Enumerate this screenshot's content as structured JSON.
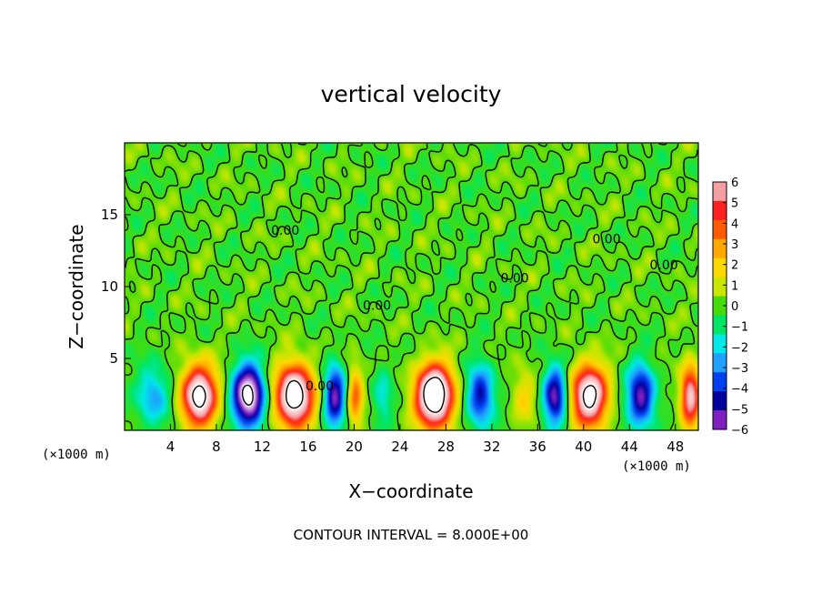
{
  "chart_data": {
    "type": "heatmap",
    "title": "vertical velocity",
    "xlabel": "X−coordinate",
    "ylabel": "Z−coordinate",
    "x_unit_left": "(×1000 m)",
    "x_unit_right": "(×1000 m)",
    "xlim": [
      0,
      50
    ],
    "ylim": [
      0,
      20
    ],
    "xticks": [
      4,
      8,
      12,
      16,
      20,
      24,
      28,
      32,
      36,
      40,
      44,
      48
    ],
    "yticks": [
      5,
      10,
      15
    ],
    "colorbar": {
      "ticks": [
        "6",
        "5",
        "4",
        "3",
        "2",
        "1",
        "0",
        "−1",
        "−2",
        "−3",
        "−4",
        "−5",
        "−6"
      ],
      "range": [
        -6,
        6
      ],
      "colors": [
        "#f4a0a0",
        "#ff2020",
        "#ff5a00",
        "#ffa800",
        "#ffd800",
        "#c8e600",
        "#46dc0a",
        "#00e664",
        "#00e8e8",
        "#20a0ff",
        "#0040f0",
        "#0000a0",
        "#8020c0"
      ]
    },
    "contour_labels": [
      "0.00",
      "0.00",
      "0.00",
      "0.00",
      "0.00",
      "0.00"
    ],
    "cells": [
      {
        "xc": 2.5,
        "w": 3.5,
        "peak": -3
      },
      {
        "xc": 6.5,
        "w": 3.6,
        "peak": 9
      },
      {
        "xc": 10.8,
        "w": 3.2,
        "peak": -9
      },
      {
        "xc": 14.8,
        "w": 3.8,
        "peak": 10
      },
      {
        "xc": 18.3,
        "w": 2.2,
        "peak": -6
      },
      {
        "xc": 20.1,
        "w": 1.6,
        "peak": 4
      },
      {
        "xc": 22.5,
        "w": 2.0,
        "peak": -2
      },
      {
        "xc": 27.0,
        "w": 3.8,
        "peak": 11
      },
      {
        "xc": 31.0,
        "w": 2.8,
        "peak": -5
      },
      {
        "xc": 34.8,
        "w": 2.4,
        "peak": 2
      },
      {
        "xc": 37.5,
        "w": 2.4,
        "peak": -6
      },
      {
        "xc": 40.5,
        "w": 3.6,
        "peak": 9
      },
      {
        "xc": 45.0,
        "w": 2.8,
        "peak": -6
      },
      {
        "xc": 49.3,
        "w": 2.0,
        "peak": 7
      }
    ],
    "contour_interval_text": "CONTOUR INTERVAL = 8.000E+00"
  }
}
